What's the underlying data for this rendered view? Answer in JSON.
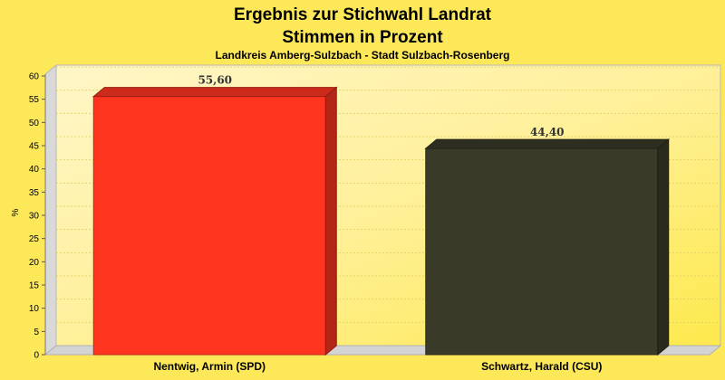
{
  "chart_data": {
    "type": "bar",
    "title": "Ergebnis zur Stichwahl Landrat",
    "title2": "Stimmen in Prozent",
    "subtitle": "Landkreis Amberg-Sulzbach - Stadt Sulzbach-Rosenberg",
    "ylabel": "%",
    "xlabel": "",
    "ylim": [
      0,
      60
    ],
    "yticks": [
      "0",
      "5",
      "10",
      "15",
      "20",
      "25",
      "30",
      "35",
      "40",
      "45",
      "50",
      "55",
      "60"
    ],
    "categories": [
      "Nentwig, Armin (SPD)",
      "Schwartz, Harald (CSU)"
    ],
    "values": [
      55.6,
      44.4
    ],
    "value_labels": [
      "55,60",
      "44,40"
    ],
    "colors": [
      "#ff3520",
      "#3a3a28"
    ],
    "grid": true,
    "style": "3d-bar"
  }
}
